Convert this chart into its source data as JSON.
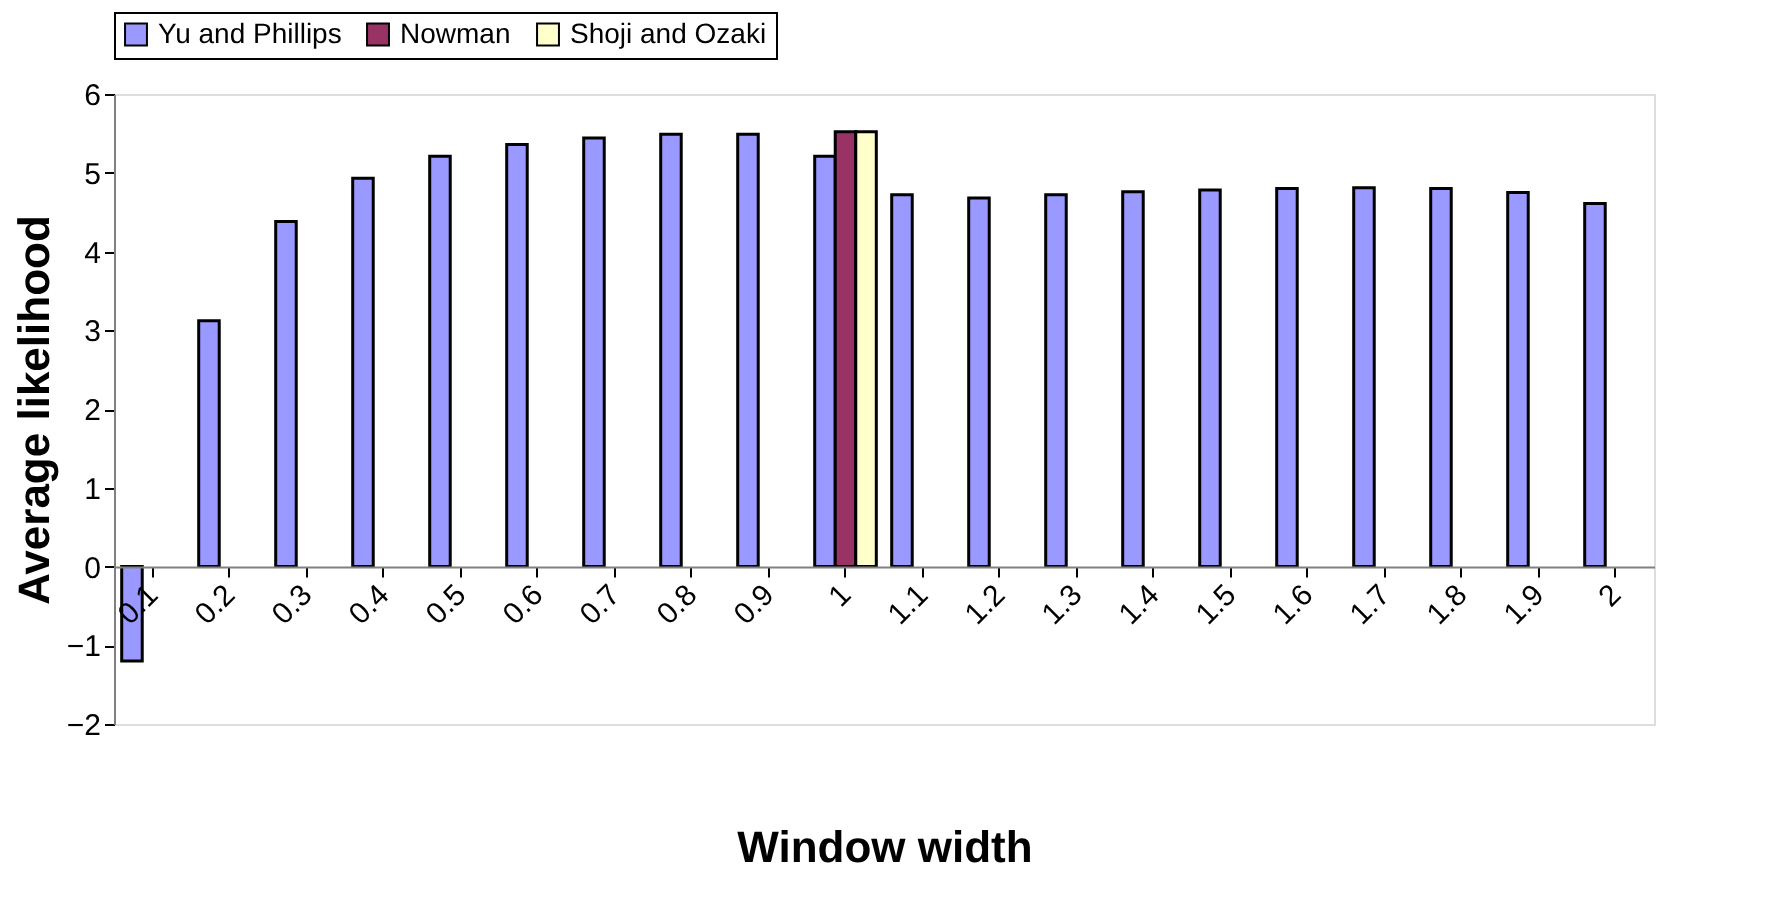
{
  "chart_data": {
    "type": "bar",
    "xlabel": "Window width",
    "ylabel": "Average likelihood",
    "categories": [
      "0.1",
      "0.2",
      "0.3",
      "0.4",
      "0.5",
      "0.6",
      "0.7",
      "0.8",
      "0.9",
      "1",
      "1.1",
      "1.2",
      "1.3",
      "1.4",
      "1.5",
      "1.6",
      "1.7",
      "1.8",
      "1.9",
      "2"
    ],
    "series": [
      {
        "name": "Yu and Phillips",
        "color": "#9999ff",
        "values": [
          -1.2,
          3.12,
          4.38,
          4.93,
          5.21,
          5.36,
          5.44,
          5.49,
          5.49,
          5.21,
          4.72,
          4.68,
          4.72,
          4.76,
          4.78,
          4.8,
          4.81,
          4.8,
          4.75,
          4.61
        ]
      },
      {
        "name": "Nowman",
        "color": "#993366",
        "values": [
          null,
          null,
          null,
          null,
          null,
          null,
          null,
          null,
          null,
          5.52,
          null,
          null,
          null,
          null,
          null,
          null,
          null,
          null,
          null,
          null
        ]
      },
      {
        "name": "Shoji and Ozaki",
        "color": "#ffffcc",
        "values": [
          null,
          null,
          null,
          null,
          null,
          null,
          null,
          null,
          null,
          5.52,
          null,
          null,
          null,
          null,
          null,
          null,
          null,
          null,
          null,
          null
        ]
      }
    ],
    "ylim": [
      -2,
      6
    ],
    "yticks": [
      -2,
      -1,
      0,
      1,
      2,
      3,
      4,
      5,
      6
    ],
    "grid": false,
    "legend": "top"
  }
}
